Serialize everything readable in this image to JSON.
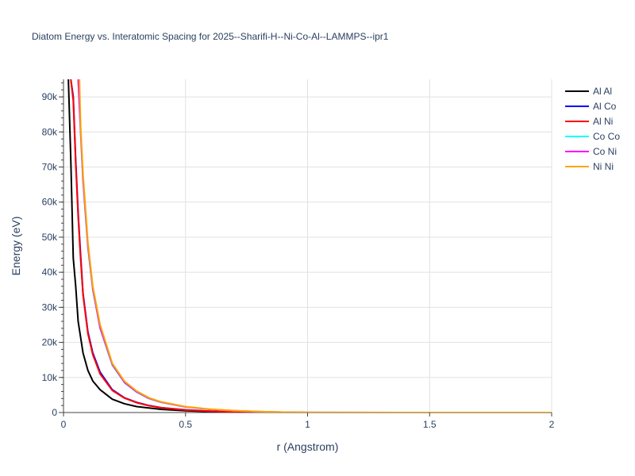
{
  "chart_data": {
    "type": "line",
    "title": "Diatom Energy vs. Interatomic Spacing for 2025--Sharifi-H--Ni-Co-Al--LAMMPS--ipr1",
    "xlabel": "r (Angstrom)",
    "ylabel": "Energy (eV)",
    "xlim": [
      0,
      2
    ],
    "ylim": [
      0,
      95000
    ],
    "x_ticks": [
      0,
      0.5,
      1,
      1.5,
      2
    ],
    "x_tick_labels": [
      "0",
      "0.5",
      "1",
      "1.5",
      "2"
    ],
    "y_ticks": [
      0,
      10000,
      20000,
      30000,
      40000,
      50000,
      60000,
      70000,
      80000,
      90000
    ],
    "y_tick_labels": [
      "0",
      "10k",
      "20k",
      "30k",
      "40k",
      "50k",
      "60k",
      "70k",
      "80k",
      "90k"
    ],
    "grid": true,
    "legend_position": "top-right",
    "series": [
      {
        "name": "Al Al",
        "color": "#000000",
        "x": [
          0.02,
          0.03,
          0.04,
          0.05,
          0.06,
          0.08,
          0.1,
          0.12,
          0.15,
          0.2,
          0.25,
          0.3,
          0.4,
          0.5,
          0.6,
          0.7,
          0.8,
          1.0,
          1.5,
          2.0
        ],
        "y": [
          95000,
          72000,
          44000,
          36000,
          26000,
          17000,
          12000,
          9000,
          6500,
          3800,
          2500,
          1700,
          900,
          500,
          250,
          100,
          30,
          0,
          0,
          0
        ]
      },
      {
        "name": "Al Co",
        "color": "#0000ff",
        "x": [
          0.03,
          0.04,
          0.05,
          0.06,
          0.07,
          0.08,
          0.1,
          0.12,
          0.15,
          0.2,
          0.25,
          0.3,
          0.35,
          0.4,
          0.5,
          0.6,
          0.7,
          0.8,
          1.0,
          1.5,
          2.0
        ],
        "y": [
          95000,
          90000,
          72000,
          57000,
          45000,
          34000,
          23000,
          17000,
          11500,
          6500,
          4200,
          2900,
          2000,
          1400,
          750,
          400,
          200,
          80,
          0,
          0,
          0
        ]
      },
      {
        "name": "Al Ni",
        "color": "#ff0000",
        "x": [
          0.03,
          0.04,
          0.05,
          0.06,
          0.07,
          0.08,
          0.1,
          0.12,
          0.15,
          0.2,
          0.25,
          0.3,
          0.35,
          0.4,
          0.5,
          0.6,
          0.7,
          0.8,
          1.0,
          1.5,
          2.0
        ],
        "y": [
          95000,
          89000,
          71000,
          56000,
          44000,
          33500,
          22500,
          16500,
          11000,
          6300,
          4100,
          2800,
          1950,
          1350,
          720,
          380,
          190,
          70,
          0,
          0,
          0
        ]
      },
      {
        "name": "Co Co",
        "color": "#00ffff",
        "x": [
          0.06,
          0.07,
          0.08,
          0.1,
          0.12,
          0.15,
          0.2,
          0.25,
          0.3,
          0.35,
          0.4,
          0.5,
          0.6,
          0.7,
          0.8,
          0.9,
          1.0,
          1.5,
          2.0
        ],
        "y": [
          95000,
          80000,
          66000,
          47000,
          35000,
          24000,
          13500,
          8500,
          5800,
          4000,
          2900,
          1600,
          900,
          500,
          250,
          100,
          30,
          0,
          0
        ]
      },
      {
        "name": "Co Ni",
        "color": "#ff00ff",
        "x": [
          0.06,
          0.07,
          0.08,
          0.1,
          0.12,
          0.15,
          0.2,
          0.25,
          0.3,
          0.35,
          0.4,
          0.5,
          0.6,
          0.7,
          0.8,
          0.9,
          1.0,
          1.5,
          2.0
        ],
        "y": [
          95500,
          80500,
          66500,
          47500,
          35300,
          24200,
          13700,
          8600,
          5900,
          4050,
          2950,
          1620,
          910,
          510,
          255,
          105,
          30,
          0,
          0
        ]
      },
      {
        "name": "Ni Ni",
        "color": "#ffa500",
        "x": [
          0.065,
          0.07,
          0.08,
          0.1,
          0.12,
          0.15,
          0.2,
          0.25,
          0.3,
          0.35,
          0.4,
          0.5,
          0.6,
          0.7,
          0.8,
          0.9,
          1.0,
          1.5,
          2.0
        ],
        "y": [
          96000,
          82000,
          68000,
          48500,
          36000,
          25000,
          14000,
          8900,
          6100,
          4200,
          3050,
          1680,
          950,
          530,
          270,
          110,
          35,
          0,
          0
        ]
      }
    ]
  }
}
